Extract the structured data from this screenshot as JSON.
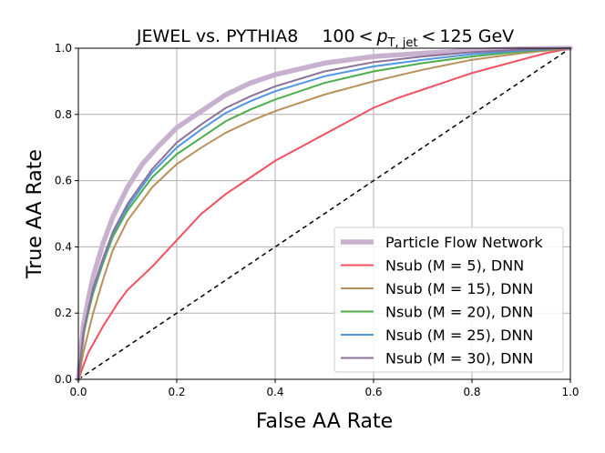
{
  "chart_data": {
    "type": "line",
    "title": {
      "prefix": "JEWEL vs. PYTHIA8",
      "range_low": "100",
      "lt": "<",
      "var_main": "p",
      "var_sub": "T, jet",
      "range_high": "125 GeV"
    },
    "xlabel": "False AA Rate",
    "ylabel": "True AA Rate",
    "xlim": [
      0,
      1
    ],
    "ylim": [
      0,
      1
    ],
    "x_ticks": [
      "0.0",
      "0.2",
      "0.4",
      "0.6",
      "0.8",
      "1.0"
    ],
    "y_ticks": [
      "0.0",
      "0.2",
      "0.4",
      "0.6",
      "0.8",
      "1.0"
    ],
    "grid": true,
    "legend_position": "bottom-right",
    "series": [
      {
        "name": "Particle Flow Network",
        "color": "#c8b1cf",
        "width": "thick",
        "x": [
          0,
          0.01,
          0.02,
          0.03,
          0.05,
          0.07,
          0.1,
          0.13,
          0.16,
          0.2,
          0.25,
          0.3,
          0.35,
          0.4,
          0.5,
          0.6,
          0.7,
          0.8,
          0.9,
          1.0
        ],
        "y": [
          0,
          0.16,
          0.24,
          0.31,
          0.41,
          0.49,
          0.58,
          0.65,
          0.7,
          0.76,
          0.81,
          0.86,
          0.895,
          0.92,
          0.955,
          0.975,
          0.985,
          0.993,
          0.998,
          1.0
        ]
      },
      {
        "name": "Nsub (M = 5), DNN",
        "color": "#f2505f",
        "width": "normal",
        "x": [
          0,
          0.02,
          0.05,
          0.08,
          0.1,
          0.15,
          0.2,
          0.25,
          0.3,
          0.35,
          0.4,
          0.45,
          0.5,
          0.55,
          0.6,
          0.65,
          0.7,
          0.75,
          0.8,
          0.85,
          0.9,
          0.95,
          1.0
        ],
        "y": [
          0,
          0.08,
          0.16,
          0.23,
          0.27,
          0.34,
          0.42,
          0.5,
          0.56,
          0.61,
          0.66,
          0.7,
          0.74,
          0.78,
          0.82,
          0.85,
          0.875,
          0.9,
          0.925,
          0.945,
          0.965,
          0.985,
          1.0
        ]
      },
      {
        "name": "Nsub (M = 15), DNN",
        "color": "#b8905a",
        "width": "normal",
        "x": [
          0,
          0.01,
          0.02,
          0.03,
          0.05,
          0.07,
          0.1,
          0.15,
          0.2,
          0.25,
          0.3,
          0.35,
          0.4,
          0.45,
          0.5,
          0.6,
          0.7,
          0.8,
          0.9,
          1.0
        ],
        "y": [
          0,
          0.08,
          0.14,
          0.2,
          0.3,
          0.39,
          0.48,
          0.58,
          0.65,
          0.7,
          0.745,
          0.78,
          0.81,
          0.835,
          0.86,
          0.9,
          0.935,
          0.965,
          0.985,
          1.0
        ]
      },
      {
        "name": "Nsub (M = 20), DNN",
        "color": "#4cae4c",
        "width": "normal",
        "x": [
          0,
          0.01,
          0.02,
          0.03,
          0.05,
          0.07,
          0.1,
          0.15,
          0.2,
          0.25,
          0.3,
          0.35,
          0.4,
          0.5,
          0.6,
          0.7,
          0.8,
          0.9,
          1.0
        ],
        "y": [
          0,
          0.13,
          0.2,
          0.26,
          0.35,
          0.43,
          0.51,
          0.61,
          0.68,
          0.73,
          0.78,
          0.815,
          0.845,
          0.895,
          0.93,
          0.955,
          0.975,
          0.99,
          1.0
        ]
      },
      {
        "name": "Nsub (M = 25), DNN",
        "color": "#4f97e0",
        "width": "normal",
        "x": [
          0,
          0.01,
          0.02,
          0.03,
          0.05,
          0.07,
          0.1,
          0.15,
          0.2,
          0.25,
          0.3,
          0.35,
          0.4,
          0.5,
          0.6,
          0.7,
          0.8,
          0.9,
          1.0
        ],
        "y": [
          0,
          0.14,
          0.21,
          0.27,
          0.36,
          0.44,
          0.52,
          0.625,
          0.7,
          0.755,
          0.805,
          0.84,
          0.87,
          0.915,
          0.945,
          0.965,
          0.982,
          0.993,
          1.0
        ]
      },
      {
        "name": "Nsub (M = 30), DNN",
        "color": "#8e7199",
        "width": "normal",
        "x": [
          0,
          0.01,
          0.02,
          0.03,
          0.05,
          0.07,
          0.1,
          0.15,
          0.2,
          0.25,
          0.3,
          0.35,
          0.4,
          0.5,
          0.6,
          0.7,
          0.8,
          0.9,
          1.0
        ],
        "y": [
          0,
          0.14,
          0.21,
          0.275,
          0.365,
          0.445,
          0.53,
          0.635,
          0.715,
          0.77,
          0.82,
          0.855,
          0.885,
          0.93,
          0.958,
          0.975,
          0.988,
          0.996,
          1.0
        ]
      }
    ],
    "reference_line": {
      "style": "dashed",
      "color": "#000000",
      "from": [
        0,
        0
      ],
      "to": [
        1,
        1
      ]
    }
  }
}
